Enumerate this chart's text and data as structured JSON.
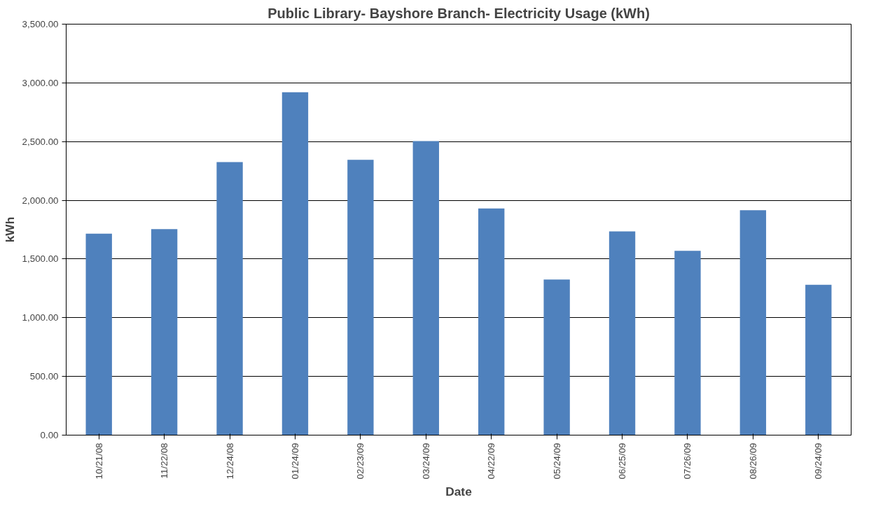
{
  "chart_data": {
    "type": "bar",
    "title": "Public Library- Bayshore Branch- Electricity Usage (kWh)",
    "xlabel": "Date",
    "ylabel": "kWh",
    "categories": [
      "10/21/08",
      "11/22/08",
      "12/24/08",
      "01/24/09",
      "02/23/09",
      "03/24/09",
      "04/22/09",
      "05/24/09",
      "06/25/09",
      "07/26/09",
      "08/26/09",
      "09/24/09"
    ],
    "values": [
      1715,
      1755,
      2325,
      2920,
      2345,
      2505,
      1930,
      1325,
      1735,
      1570,
      1915,
      1280
    ],
    "color": "#4f81bd",
    "ylim": [
      0,
      3500
    ],
    "yticks": [
      {
        "value": 0,
        "label": "0.00"
      },
      {
        "value": 500,
        "label": "500.00"
      },
      {
        "value": 1000,
        "label": "1,000.00"
      },
      {
        "value": 1500,
        "label": "1,500.00"
      },
      {
        "value": 2000,
        "label": "2,000.00"
      },
      {
        "value": 2500,
        "label": "2,500.00"
      },
      {
        "value": 3000,
        "label": "3,000.00"
      },
      {
        "value": 3500,
        "label": "3,500.00"
      }
    ],
    "grid": "y"
  }
}
